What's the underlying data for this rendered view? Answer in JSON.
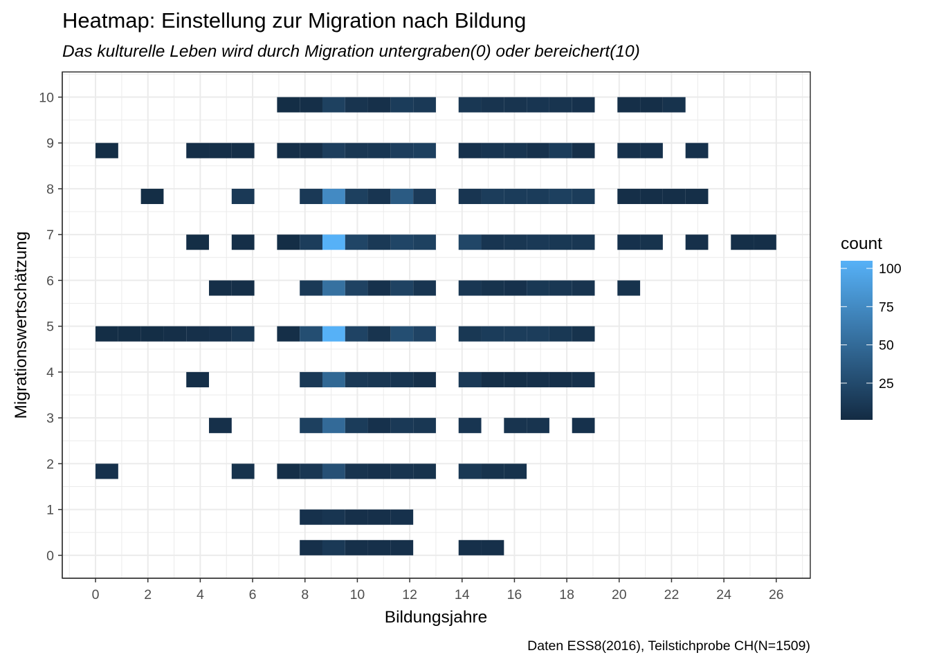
{
  "chart_data": {
    "type": "heatmap",
    "title": "Heatmap: Einstellung zur Migration nach Bildung",
    "subtitle": "Das kulturelle Leben wird durch Migration untergraben(0) oder bereichert(10)",
    "caption": "Daten ESS8(2016), Teilstichprobe CH(N=1509)",
    "xlabel": "Bildungsjahre",
    "ylabel": "Migrationswertschätzung",
    "xlim": [
      -1.27,
      27.3
    ],
    "ylim": [
      -0.5,
      10.55
    ],
    "x_ticks": [
      0,
      2,
      4,
      6,
      8,
      10,
      12,
      14,
      16,
      18,
      20,
      22,
      24,
      26
    ],
    "y_ticks": [
      0,
      1,
      2,
      3,
      4,
      5,
      6,
      7,
      8,
      9,
      10
    ],
    "grid": true,
    "bins": 30,
    "x_binwidth": 0.8667,
    "y_binwidth": 0.3333,
    "legend": {
      "title": "count",
      "position": "right",
      "breaks": [
        25,
        50,
        75,
        100
      ],
      "range": [
        1,
        105
      ],
      "low_color": "#132B43",
      "high_color": "#56B1F7"
    },
    "cells": [
      {
        "y": 10,
        "x": 7,
        "count": 3
      },
      {
        "y": 10,
        "x": 8,
        "count": 4
      },
      {
        "y": 10,
        "x": 9,
        "count": 18
      },
      {
        "y": 10,
        "x": 10,
        "count": 8
      },
      {
        "y": 10,
        "x": 11,
        "count": 5
      },
      {
        "y": 10,
        "x": 12,
        "count": 14
      },
      {
        "y": 10,
        "x": 13,
        "count": 12
      },
      {
        "y": 10,
        "x": 14,
        "count": 10
      },
      {
        "y": 10,
        "x": 15,
        "count": 8
      },
      {
        "y": 10,
        "x": 16,
        "count": 8
      },
      {
        "y": 10,
        "x": 17,
        "count": 9
      },
      {
        "y": 10,
        "x": 18,
        "count": 8
      },
      {
        "y": 10,
        "x": 19,
        "count": 6
      },
      {
        "y": 10,
        "x": 20,
        "count": 4
      },
      {
        "y": 10,
        "x": 21,
        "count": 4
      },
      {
        "y": 10,
        "x": 22,
        "count": 7
      },
      {
        "y": 9,
        "x": 0,
        "count": 3
      },
      {
        "y": 9,
        "x": 4,
        "count": 4
      },
      {
        "y": 9,
        "x": 5,
        "count": 4
      },
      {
        "y": 9,
        "x": 6,
        "count": 4
      },
      {
        "y": 9,
        "x": 7,
        "count": 4
      },
      {
        "y": 9,
        "x": 8,
        "count": 5
      },
      {
        "y": 9,
        "x": 9,
        "count": 16
      },
      {
        "y": 9,
        "x": 10,
        "count": 10
      },
      {
        "y": 9,
        "x": 11,
        "count": 10
      },
      {
        "y": 9,
        "x": 12,
        "count": 16
      },
      {
        "y": 9,
        "x": 13,
        "count": 17
      },
      {
        "y": 9,
        "x": 14,
        "count": 6
      },
      {
        "y": 9,
        "x": 15,
        "count": 9
      },
      {
        "y": 9,
        "x": 16,
        "count": 9
      },
      {
        "y": 9,
        "x": 17,
        "count": 6
      },
      {
        "y": 9,
        "x": 18,
        "count": 14
      },
      {
        "y": 9,
        "x": 19,
        "count": 5
      },
      {
        "y": 9,
        "x": 20,
        "count": 6
      },
      {
        "y": 9,
        "x": 21,
        "count": 6
      },
      {
        "y": 9,
        "x": 23,
        "count": 6
      },
      {
        "y": 8,
        "x": 2,
        "count": 3
      },
      {
        "y": 8,
        "x": 6,
        "count": 12
      },
      {
        "y": 8,
        "x": 8,
        "count": 12
      },
      {
        "y": 8,
        "x": 9,
        "count": 75
      },
      {
        "y": 8,
        "x": 10,
        "count": 17
      },
      {
        "y": 8,
        "x": 11,
        "count": 9
      },
      {
        "y": 8,
        "x": 12,
        "count": 38
      },
      {
        "y": 8,
        "x": 13,
        "count": 13
      },
      {
        "y": 8,
        "x": 14,
        "count": 9
      },
      {
        "y": 8,
        "x": 15,
        "count": 15
      },
      {
        "y": 8,
        "x": 16,
        "count": 14
      },
      {
        "y": 8,
        "x": 17,
        "count": 14
      },
      {
        "y": 8,
        "x": 18,
        "count": 17
      },
      {
        "y": 8,
        "x": 19,
        "count": 14
      },
      {
        "y": 8,
        "x": 20,
        "count": 4
      },
      {
        "y": 8,
        "x": 21,
        "count": 4
      },
      {
        "y": 8,
        "x": 22,
        "count": 4
      },
      {
        "y": 8,
        "x": 23,
        "count": 4
      },
      {
        "y": 7,
        "x": 4,
        "count": 3
      },
      {
        "y": 7,
        "x": 6,
        "count": 4
      },
      {
        "y": 7,
        "x": 7,
        "count": 3
      },
      {
        "y": 7,
        "x": 8,
        "count": 15
      },
      {
        "y": 7,
        "x": 9,
        "count": 105
      },
      {
        "y": 7,
        "x": 10,
        "count": 21
      },
      {
        "y": 7,
        "x": 11,
        "count": 12
      },
      {
        "y": 7,
        "x": 12,
        "count": 21
      },
      {
        "y": 7,
        "x": 13,
        "count": 18
      },
      {
        "y": 7,
        "x": 14,
        "count": 22
      },
      {
        "y": 7,
        "x": 15,
        "count": 9
      },
      {
        "y": 7,
        "x": 16,
        "count": 10
      },
      {
        "y": 7,
        "x": 17,
        "count": 12
      },
      {
        "y": 7,
        "x": 18,
        "count": 11
      },
      {
        "y": 7,
        "x": 19,
        "count": 10
      },
      {
        "y": 7,
        "x": 20,
        "count": 6
      },
      {
        "y": 7,
        "x": 21,
        "count": 7
      },
      {
        "y": 7,
        "x": 23,
        "count": 5
      },
      {
        "y": 7,
        "x": 25,
        "count": 4
      },
      {
        "y": 7,
        "x": 26,
        "count": 4
      },
      {
        "y": 6,
        "x": 5,
        "count": 4
      },
      {
        "y": 6,
        "x": 6,
        "count": 4
      },
      {
        "y": 6,
        "x": 8,
        "count": 12
      },
      {
        "y": 6,
        "x": 9,
        "count": 55
      },
      {
        "y": 6,
        "x": 10,
        "count": 19
      },
      {
        "y": 6,
        "x": 11,
        "count": 6
      },
      {
        "y": 6,
        "x": 12,
        "count": 19
      },
      {
        "y": 6,
        "x": 13,
        "count": 9
      },
      {
        "y": 6,
        "x": 14,
        "count": 10
      },
      {
        "y": 6,
        "x": 15,
        "count": 7
      },
      {
        "y": 6,
        "x": 16,
        "count": 6
      },
      {
        "y": 6,
        "x": 17,
        "count": 11
      },
      {
        "y": 6,
        "x": 18,
        "count": 10
      },
      {
        "y": 6,
        "x": 19,
        "count": 8
      },
      {
        "y": 6,
        "x": 20,
        "count": 7
      },
      {
        "y": 5,
        "x": 0,
        "count": 3
      },
      {
        "y": 5,
        "x": 1,
        "count": 3
      },
      {
        "y": 5,
        "x": 2,
        "count": 3
      },
      {
        "y": 5,
        "x": 3,
        "count": 4
      },
      {
        "y": 5,
        "x": 4,
        "count": 5
      },
      {
        "y": 5,
        "x": 5,
        "count": 6
      },
      {
        "y": 5,
        "x": 6,
        "count": 10
      },
      {
        "y": 5,
        "x": 7,
        "count": 4
      },
      {
        "y": 5,
        "x": 8,
        "count": 28
      },
      {
        "y": 5,
        "x": 9,
        "count": 105
      },
      {
        "y": 5,
        "x": 10,
        "count": 20
      },
      {
        "y": 5,
        "x": 11,
        "count": 8
      },
      {
        "y": 5,
        "x": 12,
        "count": 28
      },
      {
        "y": 5,
        "x": 13,
        "count": 20
      },
      {
        "y": 5,
        "x": 14,
        "count": 11
      },
      {
        "y": 5,
        "x": 15,
        "count": 14
      },
      {
        "y": 5,
        "x": 16,
        "count": 15
      },
      {
        "y": 5,
        "x": 17,
        "count": 15
      },
      {
        "y": 5,
        "x": 18,
        "count": 11
      },
      {
        "y": 5,
        "x": 19,
        "count": 7
      },
      {
        "y": 4,
        "x": 4,
        "count": 4
      },
      {
        "y": 4,
        "x": 8,
        "count": 12
      },
      {
        "y": 4,
        "x": 9,
        "count": 48
      },
      {
        "y": 4,
        "x": 10,
        "count": 12
      },
      {
        "y": 4,
        "x": 11,
        "count": 10
      },
      {
        "y": 4,
        "x": 12,
        "count": 9
      },
      {
        "y": 4,
        "x": 13,
        "count": 5
      },
      {
        "y": 4,
        "x": 14,
        "count": 12
      },
      {
        "y": 4,
        "x": 15,
        "count": 4
      },
      {
        "y": 4,
        "x": 16,
        "count": 4
      },
      {
        "y": 4,
        "x": 17,
        "count": 5
      },
      {
        "y": 4,
        "x": 18,
        "count": 5
      },
      {
        "y": 4,
        "x": 19,
        "count": 6
      },
      {
        "y": 3,
        "x": 5,
        "count": 5
      },
      {
        "y": 3,
        "x": 8,
        "count": 17
      },
      {
        "y": 3,
        "x": 9,
        "count": 50
      },
      {
        "y": 3,
        "x": 10,
        "count": 14
      },
      {
        "y": 3,
        "x": 11,
        "count": 6
      },
      {
        "y": 3,
        "x": 12,
        "count": 12
      },
      {
        "y": 3,
        "x": 13,
        "count": 10
      },
      {
        "y": 3,
        "x": 14,
        "count": 9
      },
      {
        "y": 3,
        "x": 16,
        "count": 8
      },
      {
        "y": 3,
        "x": 17,
        "count": 8
      },
      {
        "y": 3,
        "x": 19,
        "count": 6
      },
      {
        "y": 2,
        "x": 0,
        "count": 6
      },
      {
        "y": 2,
        "x": 6,
        "count": 7
      },
      {
        "y": 2,
        "x": 7,
        "count": 4
      },
      {
        "y": 2,
        "x": 8,
        "count": 10
      },
      {
        "y": 2,
        "x": 9,
        "count": 30
      },
      {
        "y": 2,
        "x": 10,
        "count": 8
      },
      {
        "y": 2,
        "x": 11,
        "count": 6
      },
      {
        "y": 2,
        "x": 12,
        "count": 8
      },
      {
        "y": 2,
        "x": 13,
        "count": 7
      },
      {
        "y": 2,
        "x": 14,
        "count": 11
      },
      {
        "y": 2,
        "x": 15,
        "count": 7
      },
      {
        "y": 2,
        "x": 16,
        "count": 7
      },
      {
        "y": 1,
        "x": 8,
        "count": 6
      },
      {
        "y": 1,
        "x": 9,
        "count": 9
      },
      {
        "y": 1,
        "x": 10,
        "count": 5
      },
      {
        "y": 1,
        "x": 11,
        "count": 5
      },
      {
        "y": 1,
        "x": 12,
        "count": 6
      },
      {
        "y": 0,
        "x": 8,
        "count": 5
      },
      {
        "y": 0,
        "x": 9,
        "count": 12
      },
      {
        "y": 0,
        "x": 10,
        "count": 5
      },
      {
        "y": 0,
        "x": 11,
        "count": 5
      },
      {
        "y": 0,
        "x": 12,
        "count": 5
      },
      {
        "y": 0,
        "x": 14,
        "count": 5
      },
      {
        "y": 0,
        "x": 15,
        "count": 5
      }
    ]
  }
}
